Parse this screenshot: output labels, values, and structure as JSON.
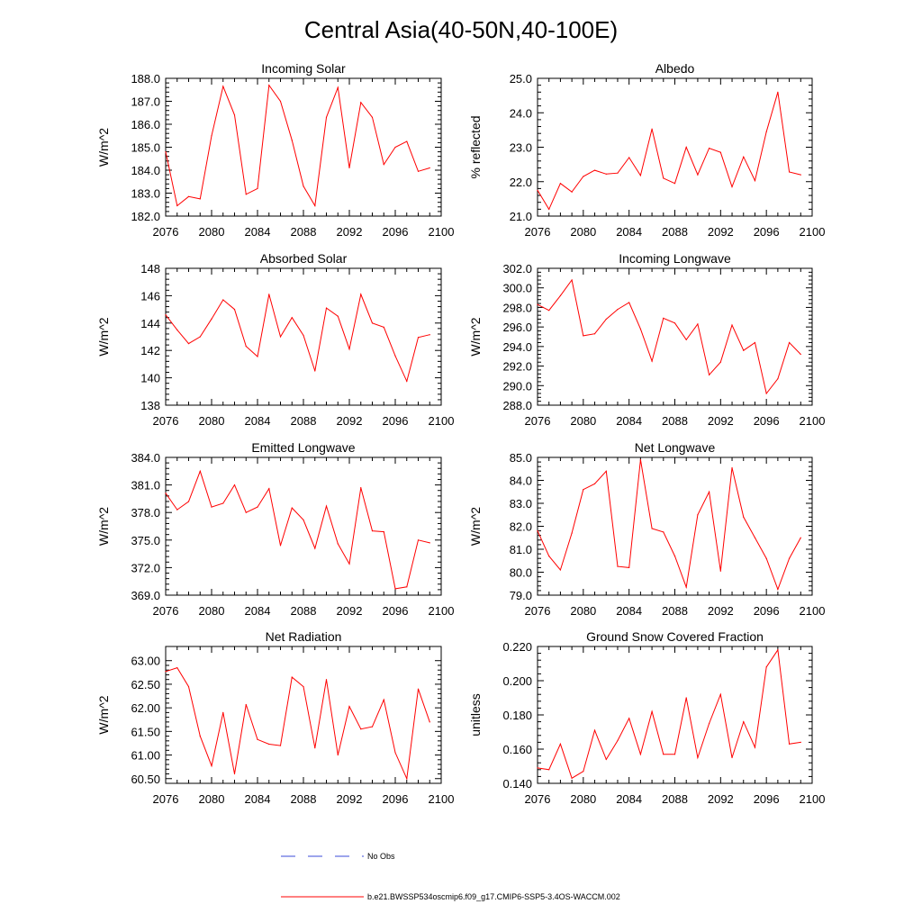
{
  "figure_title": "Central Asia(40-50N,40-100E)",
  "legend": {
    "obs_label": "No Obs",
    "obs_color": "#3b4bd8",
    "model_label": "b.e21.BWSSP534oscmip6.f09_g17.CMIP6-SSP5-3.4OS-WACCM.002",
    "model_color": "#ff0000"
  },
  "chart_data": [
    {
      "type": "line",
      "title": "Incoming Solar",
      "ylabel": "W/m^2",
      "xlim": [
        2076,
        2100
      ],
      "xticks": [
        "2076",
        "2080",
        "2084",
        "2088",
        "2092",
        "2096",
        "2100"
      ],
      "ylim": [
        182.0,
        188.0
      ],
      "yticks": [
        "182.0",
        "183.0",
        "184.0",
        "185.0",
        "186.0",
        "187.0",
        "188.0"
      ],
      "x": [
        2076,
        2077,
        2078,
        2079,
        2080,
        2081,
        2082,
        2083,
        2084,
        2085,
        2086,
        2087,
        2088,
        2089,
        2090,
        2091,
        2092,
        2093,
        2094,
        2095,
        2096,
        2097,
        2098,
        2099
      ],
      "values": [
        184.8,
        182.45,
        182.85,
        182.75,
        185.5,
        187.65,
        186.4,
        182.95,
        183.2,
        187.7,
        187.0,
        185.3,
        183.3,
        182.45,
        186.3,
        187.6,
        184.1,
        186.95,
        186.3,
        184.25,
        185.0,
        185.25,
        183.95,
        184.1
      ]
    },
    {
      "type": "line",
      "title": "Albedo",
      "ylabel": "% reflected",
      "xlim": [
        2076,
        2100
      ],
      "xticks": [
        "2076",
        "2080",
        "2084",
        "2088",
        "2092",
        "2096",
        "2100"
      ],
      "ylim": [
        21.0,
        25.0
      ],
      "yticks": [
        "21.0",
        "22.0",
        "23.0",
        "24.0",
        "25.0"
      ],
      "x": [
        2076,
        2077,
        2078,
        2079,
        2080,
        2081,
        2082,
        2083,
        2084,
        2085,
        2086,
        2087,
        2088,
        2089,
        2090,
        2091,
        2092,
        2093,
        2094,
        2095,
        2096,
        2097,
        2098,
        2099
      ],
      "values": [
        21.75,
        21.2,
        21.95,
        21.7,
        22.15,
        22.33,
        22.22,
        22.25,
        22.7,
        22.18,
        23.53,
        22.1,
        21.95,
        23.0,
        22.2,
        22.97,
        22.85,
        21.85,
        22.72,
        22.03,
        23.45,
        24.6,
        22.28,
        22.2
      ]
    },
    {
      "type": "line",
      "title": "Absorbed Solar",
      "ylabel": "W/m^2",
      "xlim": [
        2076,
        2100
      ],
      "xticks": [
        "2076",
        "2080",
        "2084",
        "2088",
        "2092",
        "2096",
        "2100"
      ],
      "ylim": [
        138,
        148
      ],
      "yticks": [
        "138",
        "140",
        "142",
        "144",
        "146",
        "148"
      ],
      "x": [
        2076,
        2077,
        2078,
        2079,
        2080,
        2081,
        2082,
        2083,
        2084,
        2085,
        2086,
        2087,
        2088,
        2089,
        2090,
        2091,
        2092,
        2093,
        2094,
        2095,
        2096,
        2097,
        2098,
        2099
      ],
      "values": [
        144.6,
        143.5,
        142.5,
        143.0,
        144.3,
        145.7,
        145.0,
        142.3,
        141.55,
        146.1,
        143.0,
        144.4,
        143.1,
        140.5,
        145.1,
        144.5,
        142.1,
        146.1,
        144.0,
        143.7,
        141.6,
        139.75,
        142.95,
        143.15
      ]
    },
    {
      "type": "line",
      "title": "Incoming Longwave",
      "ylabel": "W/m^2",
      "xlim": [
        2076,
        2100
      ],
      "xticks": [
        "2076",
        "2080",
        "2084",
        "2088",
        "2092",
        "2096",
        "2100"
      ],
      "ylim": [
        288.0,
        302.0
      ],
      "yticks": [
        "288.0",
        "290.0",
        "292.0",
        "294.0",
        "296.0",
        "298.0",
        "300.0",
        "302.0"
      ],
      "x": [
        2076,
        2077,
        2078,
        2079,
        2080,
        2081,
        2082,
        2083,
        2084,
        2085,
        2086,
        2087,
        2088,
        2089,
        2090,
        2091,
        2092,
        2093,
        2094,
        2095,
        2096,
        2097,
        2098,
        2099
      ],
      "values": [
        298.3,
        297.7,
        299.2,
        300.8,
        295.1,
        295.3,
        296.8,
        297.8,
        298.5,
        295.8,
        292.5,
        296.9,
        296.4,
        294.7,
        296.3,
        291.1,
        292.4,
        296.2,
        293.6,
        294.4,
        289.2,
        290.7,
        294.4,
        293.2
      ]
    },
    {
      "type": "line",
      "title": "Emitted Longwave",
      "ylabel": "W/m^2",
      "xlim": [
        2076,
        2100
      ],
      "xticks": [
        "2076",
        "2080",
        "2084",
        "2088",
        "2092",
        "2096",
        "2100"
      ],
      "ylim": [
        369.0,
        384.0
      ],
      "yticks": [
        "369.0",
        "372.0",
        "375.0",
        "378.0",
        "381.0",
        "384.0"
      ],
      "x": [
        2076,
        2077,
        2078,
        2079,
        2080,
        2081,
        2082,
        2083,
        2084,
        2085,
        2086,
        2087,
        2088,
        2089,
        2090,
        2091,
        2092,
        2093,
        2094,
        2095,
        2096,
        2097,
        2098,
        2099
      ],
      "values": [
        380.1,
        378.3,
        379.2,
        382.5,
        378.6,
        379.0,
        381.0,
        378.0,
        378.6,
        380.6,
        374.4,
        378.5,
        377.2,
        374.1,
        378.7,
        374.6,
        372.4,
        380.7,
        376.0,
        375.9,
        369.7,
        369.9,
        375.0,
        374.7
      ]
    },
    {
      "type": "line",
      "title": "Net Longwave",
      "ylabel": "W/m^2",
      "xlim": [
        2076,
        2100
      ],
      "xticks": [
        "2076",
        "2080",
        "2084",
        "2088",
        "2092",
        "2096",
        "2100"
      ],
      "ylim": [
        79.0,
        85.0
      ],
      "yticks": [
        "79.0",
        "80.0",
        "81.0",
        "82.0",
        "83.0",
        "84.0",
        "85.0"
      ],
      "x": [
        2076,
        2077,
        2078,
        2079,
        2080,
        2081,
        2082,
        2083,
        2084,
        2085,
        2086,
        2087,
        2088,
        2089,
        2090,
        2091,
        2092,
        2093,
        2094,
        2095,
        2096,
        2097,
        2098,
        2099
      ],
      "values": [
        81.8,
        80.7,
        80.1,
        81.7,
        83.6,
        83.85,
        84.4,
        80.25,
        80.2,
        84.9,
        81.9,
        81.75,
        80.7,
        79.35,
        82.5,
        83.5,
        80.05,
        84.55,
        82.4,
        81.5,
        80.6,
        79.25,
        80.6,
        81.5
      ]
    },
    {
      "type": "line",
      "title": "Net Radiation",
      "ylabel": "W/m^2",
      "xlim": [
        2076,
        2100
      ],
      "xticks": [
        "2076",
        "2080",
        "2084",
        "2088",
        "2092",
        "2096",
        "2100"
      ],
      "ylim": [
        60.4,
        63.3
      ],
      "yticks": [
        "60.50",
        "61.00",
        "61.50",
        "62.00",
        "62.50",
        "63.00"
      ],
      "x": [
        2076,
        2077,
        2078,
        2079,
        2080,
        2081,
        2082,
        2083,
        2084,
        2085,
        2086,
        2087,
        2088,
        2089,
        2090,
        2091,
        2092,
        2093,
        2094,
        2095,
        2096,
        2097,
        2098,
        2099
      ],
      "values": [
        62.77,
        62.85,
        62.45,
        61.4,
        60.77,
        61.9,
        60.6,
        62.07,
        61.33,
        61.23,
        61.2,
        62.65,
        62.45,
        61.15,
        62.6,
        61.0,
        62.03,
        61.55,
        61.6,
        62.17,
        61.05,
        60.5,
        62.4,
        61.7
      ]
    },
    {
      "type": "line",
      "title": "Ground Snow Covered Fraction",
      "ylabel": "unitless",
      "xlim": [
        2076,
        2100
      ],
      "xticks": [
        "2076",
        "2080",
        "2084",
        "2088",
        "2092",
        "2096",
        "2100"
      ],
      "ylim": [
        0.14,
        0.22
      ],
      "yticks": [
        "0.140",
        "0.160",
        "0.180",
        "0.200",
        "0.220"
      ],
      "x": [
        2076,
        2077,
        2078,
        2079,
        2080,
        2081,
        2082,
        2083,
        2084,
        2085,
        2086,
        2087,
        2088,
        2089,
        2090,
        2091,
        2092,
        2093,
        2094,
        2095,
        2096,
        2097,
        2098,
        2099
      ],
      "values": [
        0.149,
        0.148,
        0.163,
        0.143,
        0.147,
        0.171,
        0.154,
        0.165,
        0.178,
        0.157,
        0.182,
        0.157,
        0.157,
        0.19,
        0.155,
        0.175,
        0.192,
        0.155,
        0.176,
        0.161,
        0.208,
        0.218,
        0.163,
        0.164
      ]
    }
  ]
}
